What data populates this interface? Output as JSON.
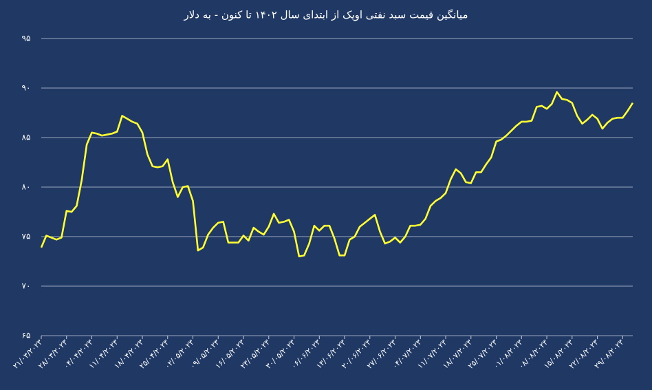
{
  "chart_data": {
    "type": "line",
    "title": "میانگین قیمت سبد نفتی اوپک از ابتدای سال ۱۴۰۲ تا کنون - به دلار",
    "categories": [
      "۲۱/۰۳/۲۰۲۳",
      null,
      null,
      null,
      null,
      "۲۸/۰۳/۲۰۲۳",
      null,
      null,
      null,
      null,
      "۰۴/۰۴/۲۰۲۳",
      null,
      null,
      null,
      null,
      "۱۱/۰۴/۲۰۲۳",
      null,
      null,
      null,
      null,
      "۱۸/۰۴/۲۰۲۳",
      null,
      null,
      null,
      null,
      "۲۵/۰۴/۲۰۲۳",
      null,
      null,
      null,
      null,
      "۰۲/۰۵/۲۰۲۳",
      null,
      null,
      null,
      null,
      "۰۹/۰۵/۲۰۲۳",
      null,
      null,
      null,
      null,
      "۱۶/۰۵/۲۰۲۳",
      null,
      null,
      null,
      null,
      "۲۳/۰۵/۲۰۲۳",
      null,
      null,
      null,
      null,
      "۳۰/۰۵/۲۰۲۳",
      null,
      null,
      null,
      null,
      "۰۶/۰۶/۲۰۲۳",
      null,
      null,
      null,
      null,
      "۱۳/۰۶/۲۰۲۳",
      null,
      null,
      null,
      null,
      "۲۰/۰۶/۲۰۲۳",
      null,
      null,
      null,
      null,
      "۲۷/۰۶/۲۰۲۳",
      null,
      null,
      null,
      null,
      "۰۴/۰۷/۲۰۲۳",
      null,
      null,
      null,
      null,
      "۱۱/۰۷/۲۰۲۳",
      null,
      null,
      null,
      null,
      "۱۸/۰۷/۲۰۲۳",
      null,
      null,
      null,
      null,
      "۲۵/۰۷/۲۰۲۳",
      null,
      null,
      null,
      null,
      "۰۱/۰۸/۲۰۲۳",
      null,
      null,
      null,
      null,
      "۰۸/۰۸/۲۰۲۳",
      null,
      null,
      null,
      null,
      "۱۵/۰۸/۲۰۲۳",
      null,
      null,
      null,
      null,
      "۲۲/۰۸/۲۰۲۳",
      null,
      null,
      null,
      null,
      "۲۹/۰۸/۲۰۲۳",
      null,
      null
    ],
    "values": [
      73.9,
      75.1,
      74.9,
      74.7,
      74.9,
      77.6,
      77.5,
      78.1,
      80.7,
      84.3,
      85.5,
      85.4,
      85.2,
      85.3,
      85.4,
      85.6,
      87.2,
      86.9,
      86.6,
      86.4,
      85.5,
      83.3,
      82.1,
      82.0,
      82.1,
      82.8,
      80.5,
      79.0,
      80.0,
      80.1,
      78.6,
      73.6,
      73.9,
      75.2,
      75.9,
      76.4,
      76.5,
      74.4,
      74.4,
      74.4,
      75.1,
      74.6,
      75.9,
      75.5,
      75.2,
      76.0,
      77.3,
      76.4,
      76.5,
      76.7,
      75.5,
      73.0,
      73.1,
      74.3,
      76.1,
      75.6,
      76.1,
      76.1,
      74.8,
      73.1,
      73.1,
      74.7,
      75.0,
      76.0,
      76.4,
      76.8,
      77.2,
      75.5,
      74.3,
      74.5,
      74.9,
      74.4,
      75.0,
      76.1,
      76.1,
      76.2,
      76.8,
      78.1,
      78.6,
      78.9,
      79.4,
      80.8,
      81.8,
      81.4,
      80.5,
      80.4,
      81.5,
      81.5,
      82.3,
      83.0,
      84.6,
      84.8,
      85.2,
      85.7,
      86.2,
      86.6,
      86.6,
      86.7,
      88.1,
      88.2,
      87.9,
      88.4,
      89.6,
      88.9,
      88.8,
      88.5,
      87.2,
      86.4,
      86.8,
      87.3,
      86.9,
      85.9,
      86.5,
      86.9,
      87.0,
      87.0,
      87.7,
      88.5
    ],
    "color": "#ffff33",
    "ylim": [
      65,
      95
    ],
    "yticks": [
      {
        "value": 65,
        "label": "۶۵"
      },
      {
        "value": 70,
        "label": "۷۰"
      },
      {
        "value": 75,
        "label": "۷۵"
      },
      {
        "value": 80,
        "label": "۸۰"
      },
      {
        "value": 85,
        "label": "۸۵"
      },
      {
        "value": 90,
        "label": "۹۰"
      },
      {
        "value": 95,
        "label": "۹۵"
      }
    ],
    "grid": true
  }
}
